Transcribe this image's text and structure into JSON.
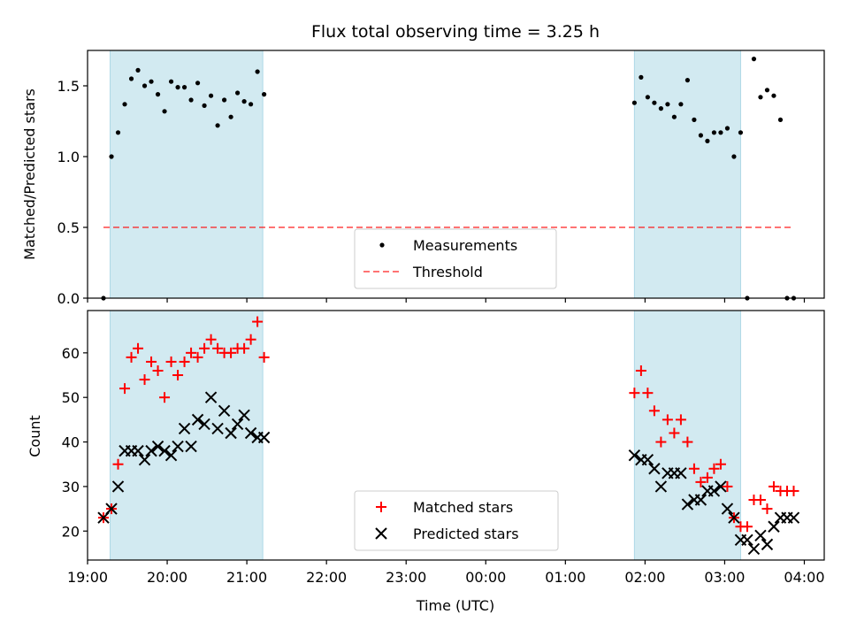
{
  "figure": {
    "title": "Flux total observing time = 3.25 h"
  },
  "colors": {
    "shade": "#add8e6",
    "measurement": "#000000",
    "threshold": "#ff0000",
    "matched": "#ff0000",
    "predicted": "#000000"
  },
  "chart_data": [
    {
      "type": "scatter",
      "name": "top-panel",
      "title": "Flux total observing time = 3.25 h",
      "xlabel": "",
      "ylabel": "Matched/Predicted stars",
      "xlim": [
        "19:00",
        "04:15"
      ],
      "ylim": [
        0,
        1.75
      ],
      "yticks": [
        0.0,
        0.5,
        1.0,
        1.5
      ],
      "ytick_labels": [
        "0.0",
        "0.5",
        "1.0",
        "1.5"
      ],
      "x_is_time": true,
      "grid": false,
      "legend_position": "lower-center",
      "shaded_intervals": [
        [
          "19:17",
          "21:12"
        ],
        [
          "01:52",
          "03:12"
        ]
      ],
      "threshold": {
        "name": "Threshold",
        "value": 0.5,
        "x_range": [
          "19:12",
          "03:52"
        ],
        "style": "dashed"
      },
      "series": [
        {
          "name": "Measurements",
          "marker": "dot",
          "x": [
            "19:12",
            "19:18",
            "19:23",
            "19:28",
            "19:33",
            "19:38",
            "19:43",
            "19:48",
            "19:53",
            "19:58",
            "20:03",
            "20:08",
            "20:13",
            "20:18",
            "20:23",
            "20:28",
            "20:33",
            "20:38",
            "20:43",
            "20:48",
            "20:53",
            "20:58",
            "21:03",
            "21:08",
            "21:13",
            "01:52",
            "01:57",
            "02:02",
            "02:07",
            "02:12",
            "02:17",
            "02:22",
            "02:27",
            "02:32",
            "02:37",
            "02:42",
            "02:47",
            "02:52",
            "02:57",
            "03:02",
            "03:07",
            "03:12",
            "03:17",
            "03:22",
            "03:27",
            "03:32",
            "03:37",
            "03:42",
            "03:47",
            "03:52"
          ],
          "y": [
            0.0,
            1.0,
            1.17,
            1.37,
            1.55,
            1.61,
            1.5,
            1.53,
            1.44,
            1.32,
            1.53,
            1.49,
            1.49,
            1.4,
            1.52,
            1.36,
            1.43,
            1.22,
            1.4,
            1.28,
            1.45,
            1.39,
            1.37,
            1.6,
            1.44,
            1.38,
            1.56,
            1.42,
            1.38,
            1.34,
            1.37,
            1.28,
            1.37,
            1.54,
            1.26,
            1.15,
            1.11,
            1.17,
            1.17,
            1.2,
            1.0,
            1.17,
            0.0,
            1.69,
            1.42,
            1.47,
            1.43,
            1.26,
            0.0,
            0.0
          ]
        }
      ]
    },
    {
      "type": "scatter",
      "name": "bottom-panel",
      "title": "",
      "xlabel": "Time (UTC)",
      "ylabel": "Count",
      "xlim": [
        "19:00",
        "04:15"
      ],
      "ylim": [
        13.5,
        69.5
      ],
      "yticks": [
        20,
        30,
        40,
        50,
        60
      ],
      "ytick_labels": [
        "20",
        "30",
        "40",
        "50",
        "60"
      ],
      "xticks": [
        "19:00",
        "20:00",
        "21:00",
        "22:00",
        "23:00",
        "00:00",
        "01:00",
        "02:00",
        "03:00",
        "04:00"
      ],
      "xtick_labels": [
        "19:00",
        "20:00",
        "21:00",
        "22:00",
        "23:00",
        "00:00",
        "01:00",
        "02:00",
        "03:00",
        "04:00"
      ],
      "x_is_time": true,
      "grid": false,
      "legend_position": "lower-center",
      "shaded_intervals": [
        [
          "19:17",
          "21:12"
        ],
        [
          "01:52",
          "03:12"
        ]
      ],
      "series": [
        {
          "name": "Matched stars",
          "marker": "plus",
          "x": [
            "19:12",
            "19:18",
            "19:23",
            "19:28",
            "19:33",
            "19:38",
            "19:43",
            "19:48",
            "19:53",
            "19:58",
            "20:03",
            "20:08",
            "20:13",
            "20:18",
            "20:23",
            "20:28",
            "20:33",
            "20:38",
            "20:43",
            "20:48",
            "20:53",
            "20:58",
            "21:03",
            "21:08",
            "21:13",
            "01:52",
            "01:57",
            "02:02",
            "02:07",
            "02:12",
            "02:17",
            "02:22",
            "02:27",
            "02:32",
            "02:37",
            "02:42",
            "02:47",
            "02:52",
            "02:57",
            "03:02",
            "03:07",
            "03:12",
            "03:17",
            "03:22",
            "03:27",
            "03:32",
            "03:37",
            "03:42",
            "03:47",
            "03:52"
          ],
          "y": [
            23,
            25,
            35,
            52,
            59,
            61,
            54,
            58,
            56,
            50,
            58,
            55,
            58,
            60,
            59,
            61,
            63,
            61,
            60,
            60,
            61,
            61,
            63,
            67,
            59,
            51,
            56,
            51,
            47,
            40,
            45,
            42,
            45,
            40,
            34,
            31,
            32,
            34,
            35,
            30,
            23,
            21,
            21,
            27,
            27,
            25,
            30,
            29,
            29,
            29
          ]
        },
        {
          "name": "Predicted stars",
          "marker": "x",
          "x": [
            "19:12",
            "19:18",
            "19:23",
            "19:28",
            "19:33",
            "19:38",
            "19:43",
            "19:48",
            "19:53",
            "19:58",
            "20:03",
            "20:08",
            "20:13",
            "20:18",
            "20:23",
            "20:28",
            "20:33",
            "20:38",
            "20:43",
            "20:48",
            "20:53",
            "20:58",
            "21:03",
            "21:08",
            "21:13",
            "01:52",
            "01:57",
            "02:02",
            "02:07",
            "02:12",
            "02:17",
            "02:22",
            "02:27",
            "02:32",
            "02:37",
            "02:42",
            "02:47",
            "02:52",
            "02:57",
            "03:02",
            "03:07",
            "03:12",
            "03:17",
            "03:22",
            "03:27",
            "03:32",
            "03:37",
            "03:42",
            "03:47",
            "03:52"
          ],
          "y": [
            23,
            25,
            30,
            38,
            38,
            38,
            36,
            38,
            39,
            38,
            37,
            39,
            43,
            39,
            45,
            44,
            50,
            43,
            47,
            42,
            44,
            46,
            42,
            41,
            41,
            37,
            36,
            36,
            34,
            30,
            33,
            33,
            33,
            26,
            27,
            27,
            29,
            29,
            30,
            25,
            23,
            18,
            18,
            16,
            19,
            17,
            21,
            23,
            23,
            23
          ]
        }
      ]
    }
  ]
}
